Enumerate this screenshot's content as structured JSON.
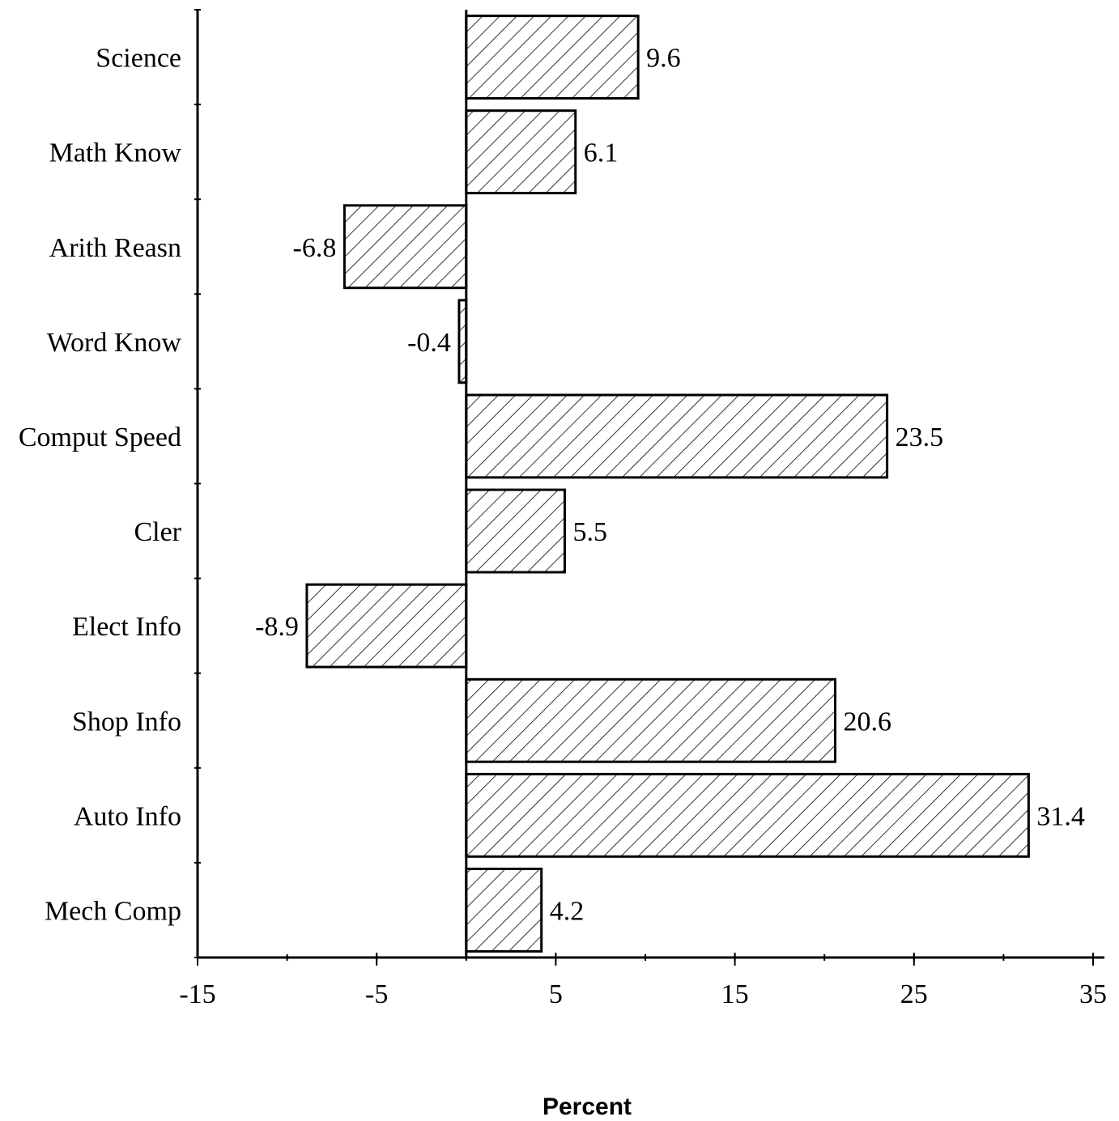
{
  "chart_data": {
    "type": "bar",
    "orientation": "horizontal",
    "title": "",
    "xlabel": "Percent",
    "ylabel": "",
    "categories": [
      "Science",
      "Math Know",
      "Arith Reasn",
      "Word Know",
      "Comput Speed",
      "Cler",
      "Elect Info",
      "Shop Info",
      "Auto Info",
      "Mech Comp"
    ],
    "values": [
      9.6,
      6.1,
      -6.8,
      -0.4,
      23.5,
      5.5,
      -8.9,
      20.6,
      31.4,
      4.2
    ],
    "value_labels": [
      "9.6",
      "6.1",
      "-6.8",
      "-0.4",
      "23.5",
      "5.5",
      "-8.9",
      "20.6",
      "31.4",
      "4.2"
    ],
    "xlim": [
      -15,
      35
    ],
    "x_ticks": [
      -15,
      -5,
      5,
      15,
      25,
      35
    ],
    "x_tick_labels": [
      "-15",
      "-5",
      "5",
      "15",
      "25",
      "35"
    ],
    "grid": false,
    "legend": "none",
    "bar_fill": "hatched",
    "bar_color": "#000000"
  }
}
